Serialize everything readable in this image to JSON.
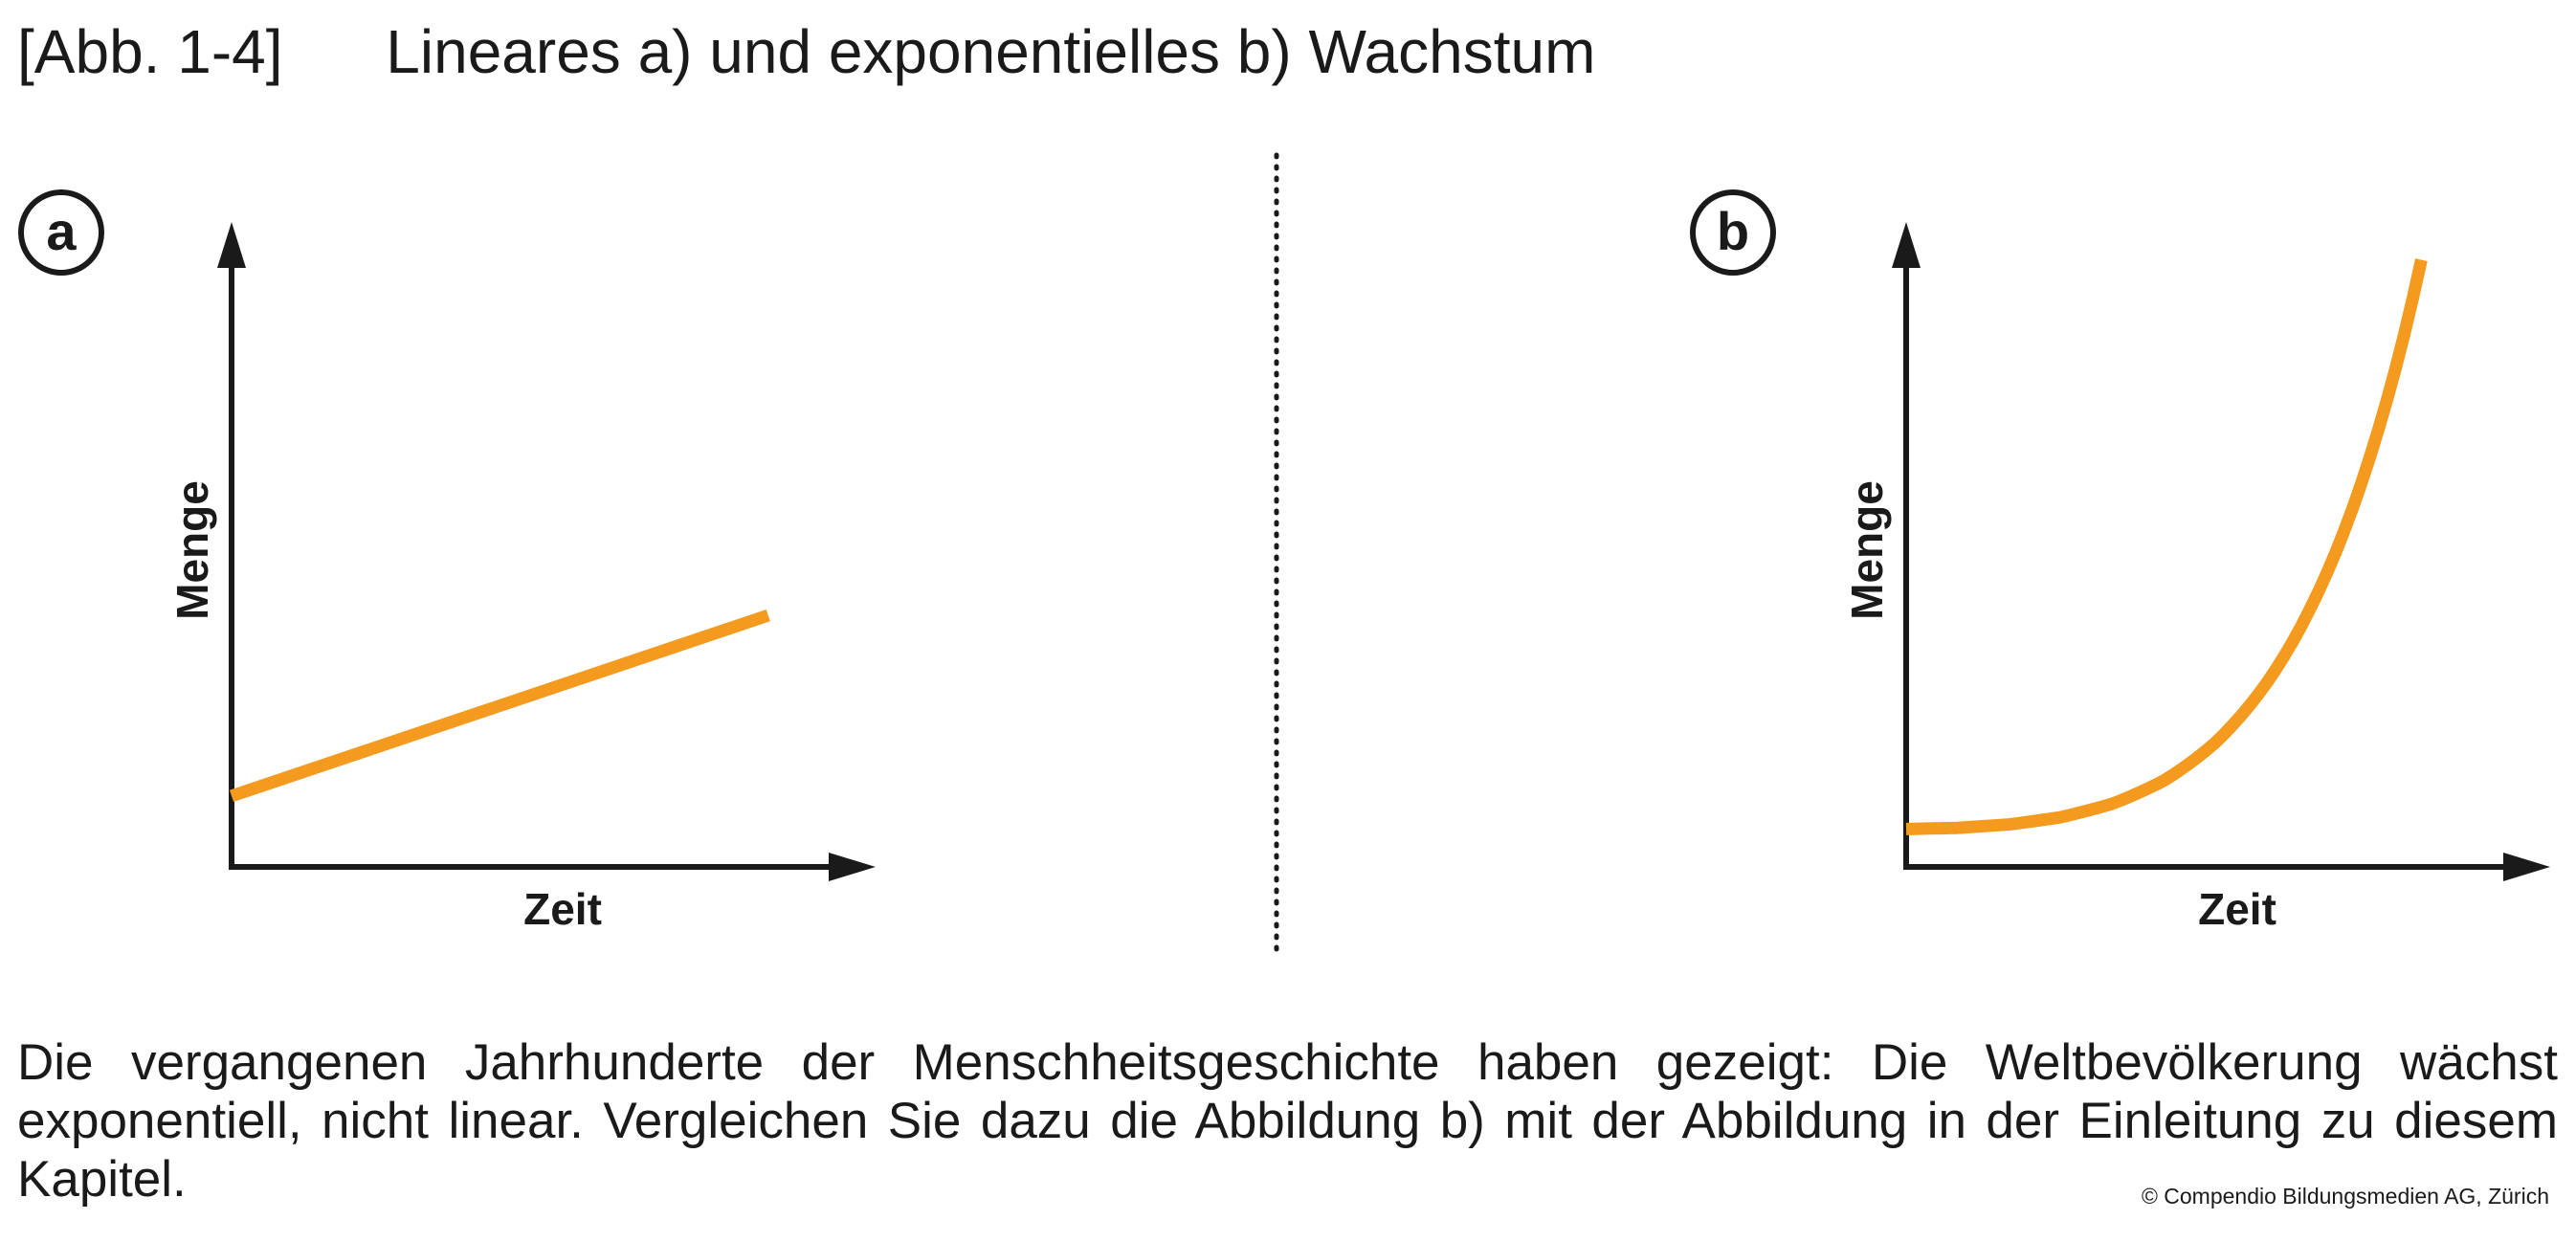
{
  "figure": {
    "number": "[Abb. 1-4]",
    "title": "Lineares a) und exponentielles b) Wachstum"
  },
  "chart_data": [
    {
      "type": "line",
      "panel_label": "a",
      "xlabel": "Zeit",
      "ylabel": "Menge",
      "color": "#f39a1f",
      "curve": "linear",
      "x": [
        0,
        0.25,
        0.5,
        0.75,
        1.0
      ],
      "y": [
        0.22,
        0.36,
        0.5,
        0.64,
        0.78
      ],
      "xlim": [
        0,
        1.2
      ],
      "ylim": [
        0,
        2.0
      ]
    },
    {
      "type": "line",
      "panel_label": "b",
      "xlabel": "Zeit",
      "ylabel": "Menge",
      "color": "#f39a1f",
      "curve": "exponential",
      "x": [
        0,
        0.1,
        0.2,
        0.3,
        0.4,
        0.5,
        0.6,
        0.7,
        0.8,
        0.9,
        1.0
      ],
      "y": [
        0.2,
        0.206,
        0.224,
        0.262,
        0.333,
        0.455,
        0.655,
        0.971,
        1.45,
        2.16,
        3.2
      ],
      "xlim": [
        0,
        1.25
      ],
      "ylim": [
        0,
        3.4
      ]
    }
  ],
  "caption": "Die vergangenen Jahrhunderte der Menschheitsgeschichte haben gezeigt: Die Weltbevölkerung wächst exponentiell, nicht linear. Vergleichen Sie dazu die Abbildung b) mit der Abbildung in der Einleitung zu diesem Kapitel.",
  "credit": "© Compendio Bildungsmedien AG, Zürich"
}
